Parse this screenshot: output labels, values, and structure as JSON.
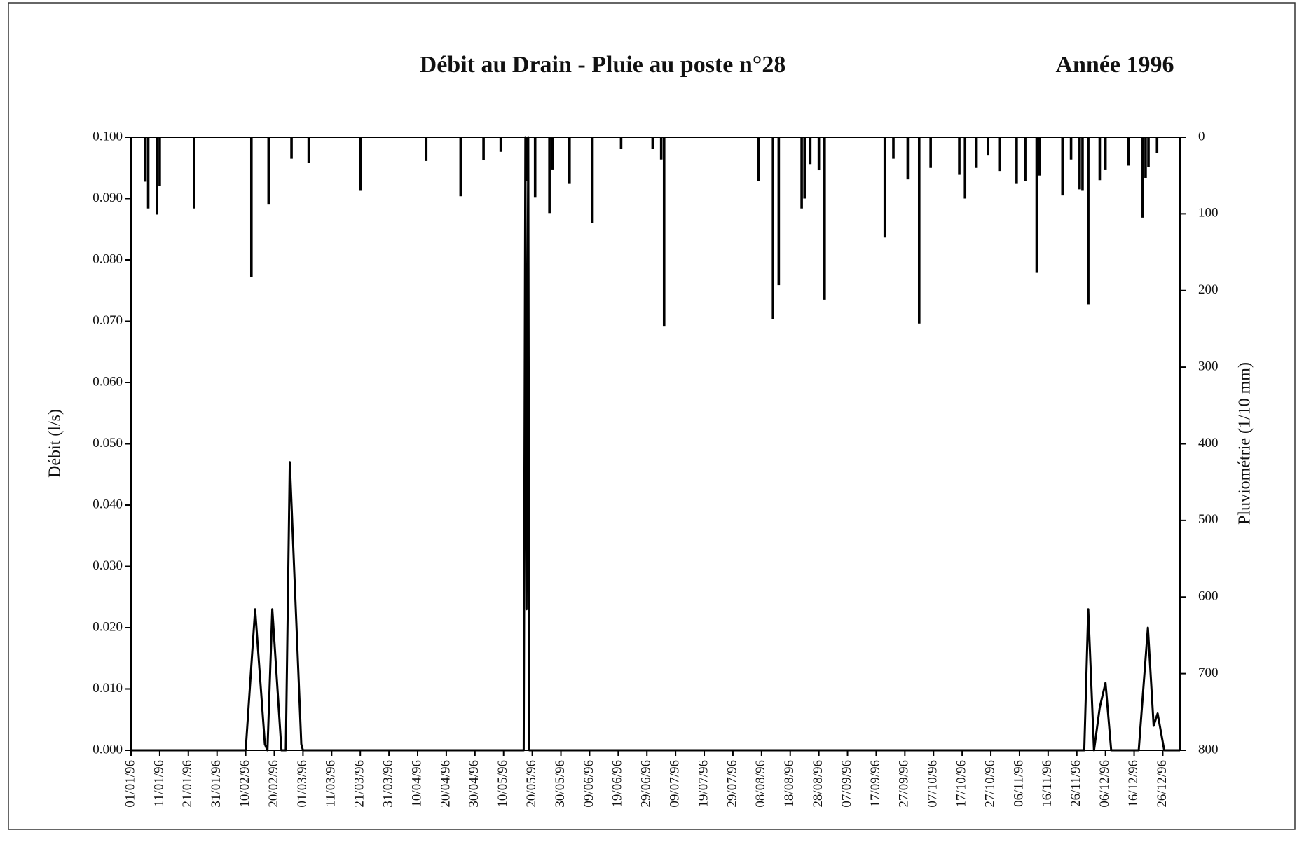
{
  "chart_data": {
    "type": "combo",
    "title": "Débit au Drain - Pluie au poste n°28",
    "subtitle": "Année 1996",
    "ylabel": "Débit (l/s)",
    "y2label": "Pluviométrie (1/10 mm)",
    "xlim": [
      0,
      366
    ],
    "xticks": [
      {
        "value": 0,
        "label": "01/01/96"
      },
      {
        "value": 10,
        "label": "11/01/96"
      },
      {
        "value": 20,
        "label": "21/01/96"
      },
      {
        "value": 30,
        "label": "31/01/96"
      },
      {
        "value": 40,
        "label": "10/02/96"
      },
      {
        "value": 50,
        "label": "20/02/96"
      },
      {
        "value": 60,
        "label": "01/03/96"
      },
      {
        "value": 70,
        "label": "11/03/96"
      },
      {
        "value": 80,
        "label": "21/03/96"
      },
      {
        "value": 90,
        "label": "31/03/96"
      },
      {
        "value": 100,
        "label": "10/04/96"
      },
      {
        "value": 110,
        "label": "20/04/96"
      },
      {
        "value": 120,
        "label": "30/04/96"
      },
      {
        "value": 130,
        "label": "10/05/96"
      },
      {
        "value": 140,
        "label": "20/05/96"
      },
      {
        "value": 150,
        "label": "30/05/96"
      },
      {
        "value": 160,
        "label": "09/06/96"
      },
      {
        "value": 170,
        "label": "19/06/96"
      },
      {
        "value": 180,
        "label": "29/06/96"
      },
      {
        "value": 190,
        "label": "09/07/96"
      },
      {
        "value": 200,
        "label": "19/07/96"
      },
      {
        "value": 210,
        "label": "29/07/96"
      },
      {
        "value": 220,
        "label": "08/08/96"
      },
      {
        "value": 230,
        "label": "18/08/96"
      },
      {
        "value": 240,
        "label": "28/08/96"
      },
      {
        "value": 250,
        "label": "07/09/96"
      },
      {
        "value": 260,
        "label": "17/09/96"
      },
      {
        "value": 270,
        "label": "27/09/96"
      },
      {
        "value": 280,
        "label": "07/10/96"
      },
      {
        "value": 290,
        "label": "17/10/96"
      },
      {
        "value": 300,
        "label": "27/10/96"
      },
      {
        "value": 310,
        "label": "06/11/96"
      },
      {
        "value": 320,
        "label": "16/11/96"
      },
      {
        "value": 330,
        "label": "26/11/96"
      },
      {
        "value": 340,
        "label": "06/12/96"
      },
      {
        "value": 350,
        "label": "16/12/96"
      },
      {
        "value": 360,
        "label": "26/12/96"
      }
    ],
    "ylim": [
      0,
      0.1
    ],
    "yticks": [
      {
        "value": 0,
        "label": "0.000"
      },
      {
        "value": 0.01,
        "label": "0.010"
      },
      {
        "value": 0.02,
        "label": "0.020"
      },
      {
        "value": 0.03,
        "label": "0.030"
      },
      {
        "value": 0.04,
        "label": "0.040"
      },
      {
        "value": 0.05,
        "label": "0.050"
      },
      {
        "value": 0.06,
        "label": "0.060"
      },
      {
        "value": 0.07,
        "label": "0.070"
      },
      {
        "value": 0.08,
        "label": "0.080"
      },
      {
        "value": 0.09,
        "label": "0.090"
      },
      {
        "value": 0.1,
        "label": "0.100"
      }
    ],
    "y2lim": [
      0,
      800
    ],
    "y2ticks": [
      0,
      100,
      200,
      300,
      400,
      500,
      600,
      700,
      800
    ],
    "y2_inverted": true,
    "series": [
      {
        "type": "line",
        "color": "#000000",
        "x": [
          0,
          40,
          43.3,
          46.7,
          47.6,
          49.3,
          52.5,
          54,
          55.4,
          59.4,
          60,
          137,
          137.6,
          138,
          138.6,
          139,
          332.6,
          334,
          336,
          338,
          340,
          342,
          351.6,
          354.8,
          356.8,
          358.2,
          360.5,
          366
        ],
        "values": [
          0,
          0,
          0.023,
          0.001,
          0,
          0.023,
          0,
          0,
          0.047,
          0.001,
          0,
          0,
          0.1,
          0.023,
          0.1,
          0,
          0,
          0.023,
          0,
          0.007,
          0.011,
          0,
          0,
          0.02,
          0.004,
          0.006,
          0,
          0
        ]
      },
      {
        "type": "bar",
        "axis": "y2",
        "color": "#000000",
        "x": [
          5,
          6,
          9,
          10,
          22,
          42,
          48,
          56,
          62,
          80,
          103,
          115,
          123,
          129,
          138,
          141,
          146,
          147,
          153,
          161,
          171,
          182,
          185,
          186,
          219,
          224,
          226,
          234,
          235,
          237,
          240,
          242,
          263,
          266,
          271,
          275,
          279,
          289,
          291,
          295,
          299,
          303,
          309,
          312,
          316,
          317,
          325,
          328,
          331,
          332,
          334,
          338,
          340,
          348,
          353,
          354,
          355,
          358
        ],
        "values": [
          58,
          93,
          101,
          64,
          93,
          182,
          87,
          28,
          33,
          69,
          31,
          77,
          30,
          19,
          57,
          78,
          99,
          42,
          60,
          112,
          15,
          15,
          29,
          247,
          57,
          237,
          193,
          93,
          80,
          35,
          43,
          212,
          131,
          28,
          55,
          243,
          40,
          49,
          80,
          40,
          23,
          44,
          60,
          57,
          177,
          50,
          76,
          29,
          68,
          69,
          218,
          56,
          42,
          37,
          105,
          53,
          39,
          21
        ]
      }
    ]
  }
}
